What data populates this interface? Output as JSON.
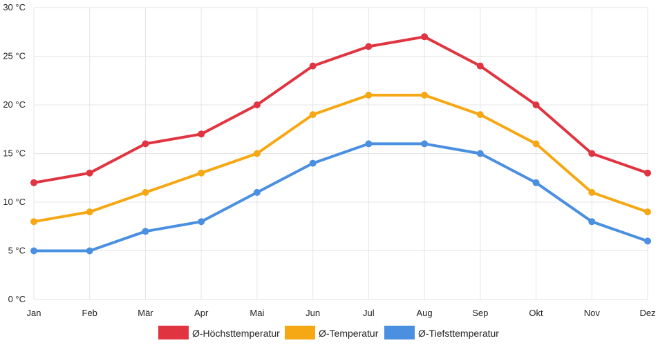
{
  "chart_data": {
    "type": "line",
    "categories": [
      "Jan",
      "Feb",
      "Mär",
      "Apr",
      "Mai",
      "Jun",
      "Jul",
      "Aug",
      "Sep",
      "Okt",
      "Nov",
      "Dez"
    ],
    "y_ticks": [
      "0 °C",
      "5 °C",
      "10 °C",
      "15 °C",
      "20 °C",
      "25 °C",
      "30 °C"
    ],
    "ylim": [
      0,
      30
    ],
    "grid": true,
    "legend_position": "bottom",
    "series": [
      {
        "name": "Ø-Höchsttemperatur",
        "color": "#e03440",
        "values": [
          12,
          13,
          16,
          17,
          20,
          24,
          26,
          27,
          24,
          20,
          15,
          13
        ]
      },
      {
        "name": "Ø-Temperatur",
        "color": "#f5a813",
        "values": [
          8,
          9,
          11,
          13,
          15,
          19,
          21,
          21,
          19,
          16,
          11,
          9
        ]
      },
      {
        "name": "Ø-Tiefsttemperatur",
        "color": "#4a8fe0",
        "values": [
          5,
          5,
          7,
          8,
          11,
          14,
          16,
          16,
          15,
          12,
          8,
          6
        ]
      }
    ]
  }
}
